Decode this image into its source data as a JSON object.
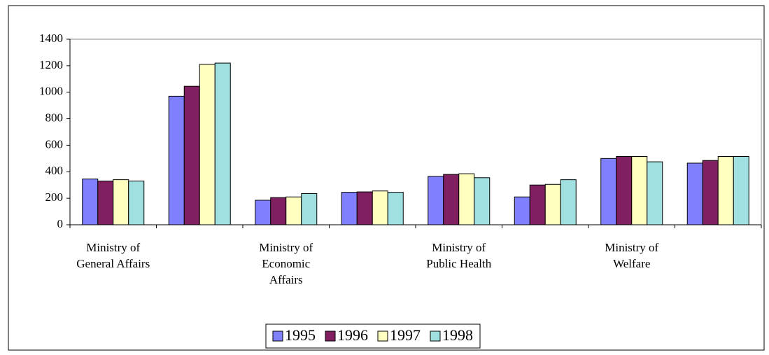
{
  "chart_data": {
    "type": "bar",
    "categories": [
      "Ministry of\nGeneral Affairs",
      null,
      "Ministry of\nEconomic\nAffairs",
      null,
      "Ministry of\nPublic Health",
      null,
      "Ministry of\nWelfare",
      null
    ],
    "series": [
      {
        "name": "1995",
        "color": "#8080ff",
        "values": [
          345,
          970,
          185,
          245,
          365,
          210,
          500,
          465
        ]
      },
      {
        "name": "1996",
        "color": "#802060",
        "values": [
          330,
          1045,
          205,
          248,
          380,
          300,
          515,
          485
        ]
      },
      {
        "name": "1997",
        "color": "#ffffc0",
        "values": [
          340,
          1210,
          210,
          255,
          385,
          305,
          515,
          515
        ]
      },
      {
        "name": "1998",
        "color": "#a0e0e0",
        "values": [
          330,
          1220,
          235,
          245,
          355,
          340,
          475,
          515
        ]
      }
    ],
    "ylim": [
      0,
      1400
    ],
    "yticks": [
      0,
      200,
      400,
      600,
      800,
      1000,
      1200,
      1400
    ],
    "grid": false,
    "legend": "bottom"
  }
}
